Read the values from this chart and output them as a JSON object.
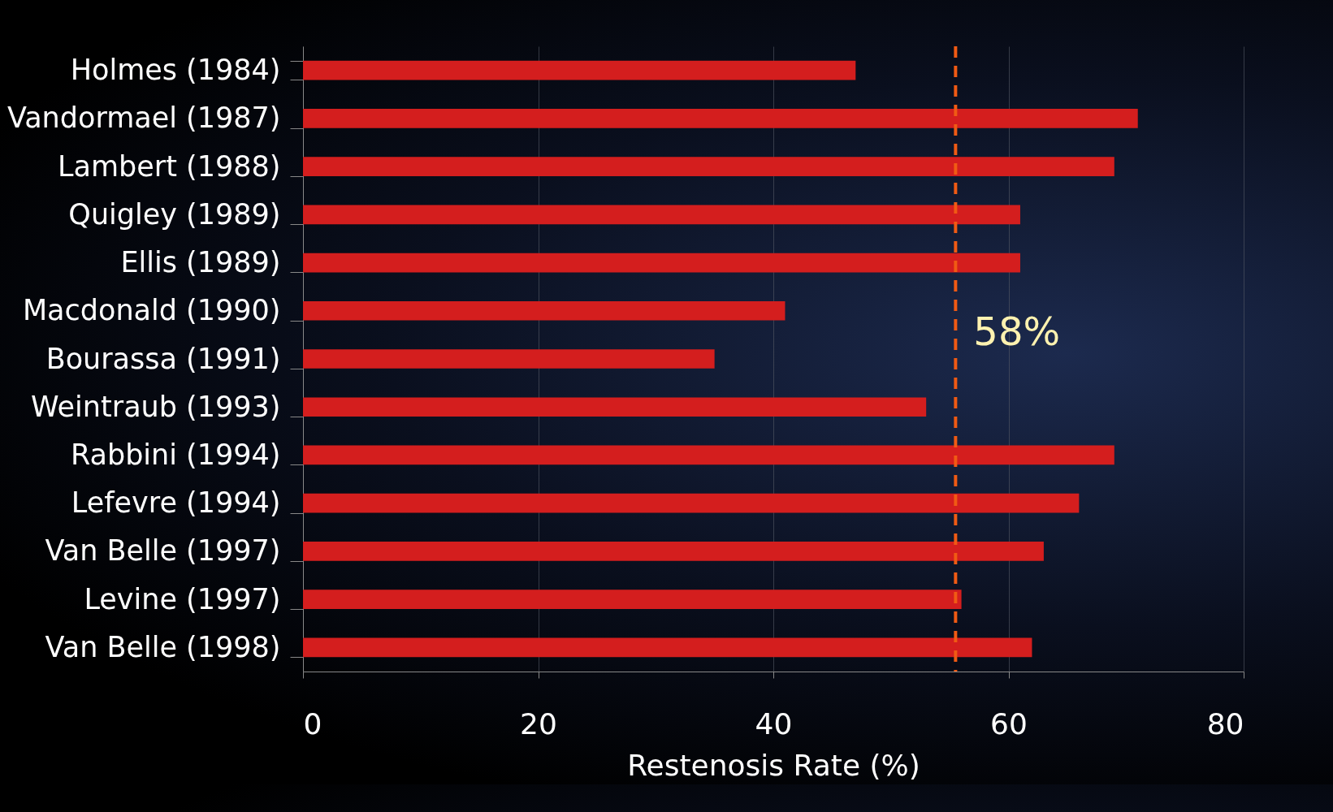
{
  "chart_data": {
    "type": "bar",
    "orientation": "horizontal",
    "xlabel": "Restenosis Rate (%)",
    "categories": [
      "Holmes (1984)",
      "Vandormael (1987)",
      "Lambert (1988)",
      "Quigley (1989)",
      "Ellis (1989)",
      "Macdonald (1990)",
      "Bourassa (1991)",
      "Weintraub (1993)",
      "Rabbini (1994)",
      "Lefevre (1994)",
      "Van Belle (1997)",
      "Levine (1997)",
      "Van Belle (1998)"
    ],
    "values": [
      47,
      71,
      69,
      61,
      61,
      41,
      35,
      53,
      69,
      66,
      63,
      56,
      62
    ],
    "color": "#d41e1e",
    "xlim": [
      0,
      80
    ],
    "xticks": [
      0,
      20,
      40,
      60,
      80
    ],
    "grid": "x",
    "ref_lines": [
      {
        "axis": "x",
        "value": 55.5,
        "color": "#f05a14",
        "line_style": "dashed"
      }
    ],
    "annotations": [
      "58%"
    ]
  }
}
